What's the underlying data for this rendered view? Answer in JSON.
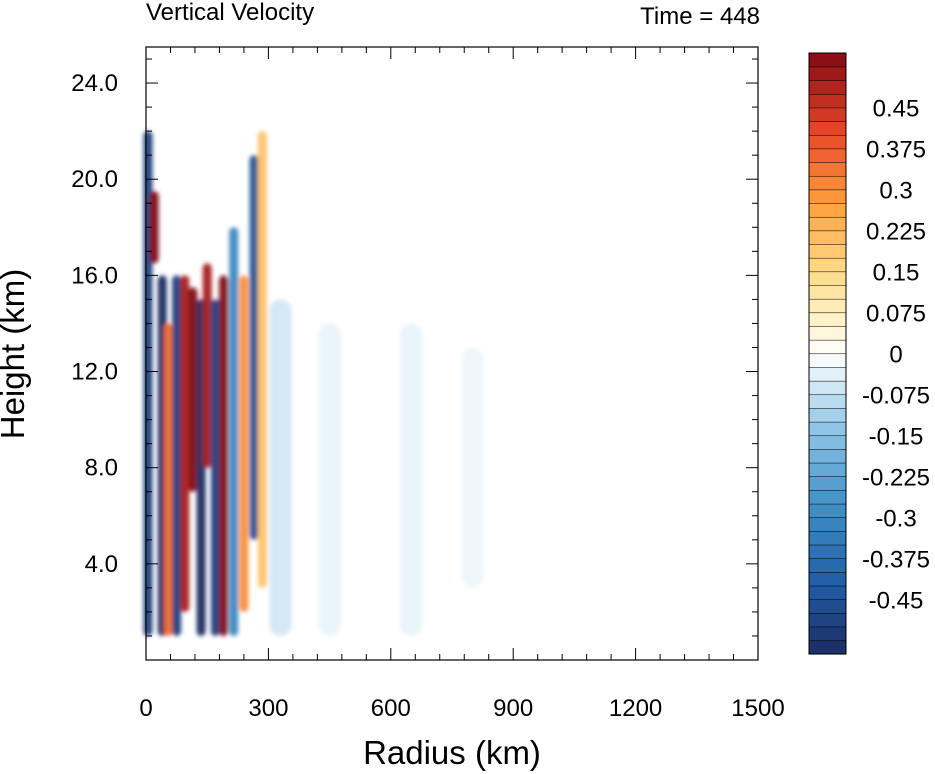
{
  "chart_data": {
    "type": "heatmap",
    "title": "Vertical Velocity",
    "subtitle": "Time = 448",
    "xlabel": "Radius (km)",
    "ylabel": "Height (km)",
    "xlim": [
      0,
      1500
    ],
    "ylim": [
      0,
      25.5
    ],
    "x_ticks": [
      0,
      300,
      600,
      900,
      1200,
      1500
    ],
    "x_tick_labels": [
      "0",
      "300",
      "600",
      "900",
      "1200",
      "1500"
    ],
    "y_ticks": [
      4,
      8,
      12,
      16,
      20,
      24
    ],
    "y_tick_labels": [
      "4.0",
      "8.0",
      "12.0",
      "16.0",
      "20.0",
      "24.0"
    ],
    "colorbar": {
      "levels": [
        -0.55,
        -0.525,
        -0.5,
        -0.475,
        -0.45,
        -0.425,
        -0.4,
        -0.375,
        -0.35,
        -0.325,
        -0.3,
        -0.275,
        -0.25,
        -0.225,
        -0.2,
        -0.175,
        -0.15,
        -0.125,
        -0.1,
        -0.075,
        -0.05,
        -0.025,
        0,
        0.025,
        0.05,
        0.075,
        0.1,
        0.125,
        0.15,
        0.175,
        0.2,
        0.225,
        0.25,
        0.275,
        0.3,
        0.325,
        0.35,
        0.375,
        0.4,
        0.425,
        0.45,
        0.475,
        0.5,
        0.525,
        0.55
      ],
      "labeled_values": [
        -0.45,
        -0.375,
        -0.3,
        -0.225,
        -0.15,
        -0.075,
        0,
        0.075,
        0.15,
        0.225,
        0.3,
        0.375,
        0.45
      ],
      "labels": [
        "-0.45",
        "-0.375",
        "-0.3",
        "-0.225",
        "-0.15",
        "-0.075",
        "0",
        "0.075",
        "0.15",
        "0.225",
        "0.3",
        "0.375",
        "0.45"
      ],
      "colormap": "blue-white-red"
    },
    "features": [
      {
        "radius_km": 5,
        "height_top_km": 22,
        "height_bottom_km": 1,
        "w": -0.5
      },
      {
        "radius_km": 20,
        "height_top_km": 19.5,
        "height_bottom_km": 16.5,
        "w": 0.55
      },
      {
        "radius_km": 40,
        "height_top_km": 16,
        "height_bottom_km": 1,
        "w": -0.55
      },
      {
        "radius_km": 55,
        "height_top_km": 14,
        "height_bottom_km": 1,
        "w": 0.35
      },
      {
        "radius_km": 75,
        "height_top_km": 16,
        "height_bottom_km": 1,
        "w": -0.5
      },
      {
        "radius_km": 95,
        "height_top_km": 16,
        "height_bottom_km": 2,
        "w": 0.5
      },
      {
        "radius_km": 115,
        "height_top_km": 15.5,
        "height_bottom_km": 7,
        "w": 0.55
      },
      {
        "radius_km": 135,
        "height_top_km": 15,
        "height_bottom_km": 1,
        "w": -0.55
      },
      {
        "radius_km": 150,
        "height_top_km": 16.5,
        "height_bottom_km": 8,
        "w": 0.5
      },
      {
        "radius_km": 170,
        "height_top_km": 15,
        "height_bottom_km": 1,
        "w": -0.5
      },
      {
        "radius_km": 190,
        "height_top_km": 16,
        "height_bottom_km": 1,
        "w": 0.55
      },
      {
        "radius_km": 215,
        "height_top_km": 18,
        "height_bottom_km": 1,
        "w": -0.3
      },
      {
        "radius_km": 240,
        "height_top_km": 16,
        "height_bottom_km": 2,
        "w": 0.3
      },
      {
        "radius_km": 265,
        "height_top_km": 21,
        "height_bottom_km": 5,
        "w": -0.45
      },
      {
        "radius_km": 285,
        "height_top_km": 22,
        "height_bottom_km": 3,
        "w": 0.2
      },
      {
        "radius_km": 330,
        "height_top_km": 15,
        "height_bottom_km": 1,
        "w": -0.1
      },
      {
        "radius_km": 450,
        "height_top_km": 14,
        "height_bottom_km": 1,
        "w": -0.05
      },
      {
        "radius_km": 650,
        "height_top_km": 14,
        "height_bottom_km": 1,
        "w": -0.05
      },
      {
        "radius_km": 800,
        "height_top_km": 13,
        "height_bottom_km": 3,
        "w": -0.04
      }
    ]
  }
}
